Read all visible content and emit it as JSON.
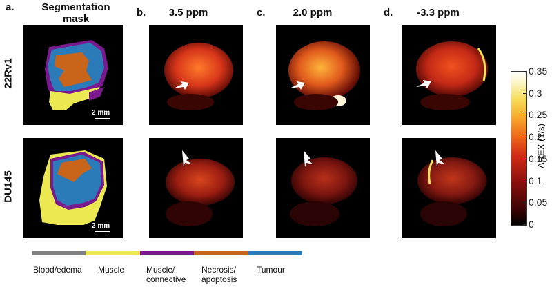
{
  "panels": {
    "a": {
      "letter": "a.",
      "title": "Segmentation mask"
    },
    "b": {
      "letter": "b.",
      "title": "3.5 ppm"
    },
    "c": {
      "letter": "c.",
      "title": "2.0 ppm"
    },
    "d": {
      "letter": "d.",
      "title": "-3.3 ppm"
    }
  },
  "rows": [
    "22Rv1",
    "DU145"
  ],
  "scalebar": "2 mm",
  "legend": [
    {
      "label": "Blood/edema",
      "color": "#808080"
    },
    {
      "label": "Muscle",
      "color": "#ece852"
    },
    {
      "label": "Muscle/ connective",
      "color": "#7b1a8f"
    },
    {
      "label": "Necrosis/ apoptosis",
      "color": "#c8651b"
    },
    {
      "label": "Tumour",
      "color": "#2a7bb8"
    }
  ],
  "colorbar": {
    "label": "AREX (1/s)",
    "ticks": [
      "0.35",
      "0.3",
      "0.25",
      "0.2",
      "0.15",
      "0.1",
      "0.05",
      "0"
    ],
    "range": [
      0,
      0.35
    ]
  },
  "colors": {
    "tumour": "#2a7bb8",
    "necrosis": "#c8651b",
    "muscle": "#ece852",
    "connective": "#7b1a8f",
    "arrow": "#ffffff"
  }
}
